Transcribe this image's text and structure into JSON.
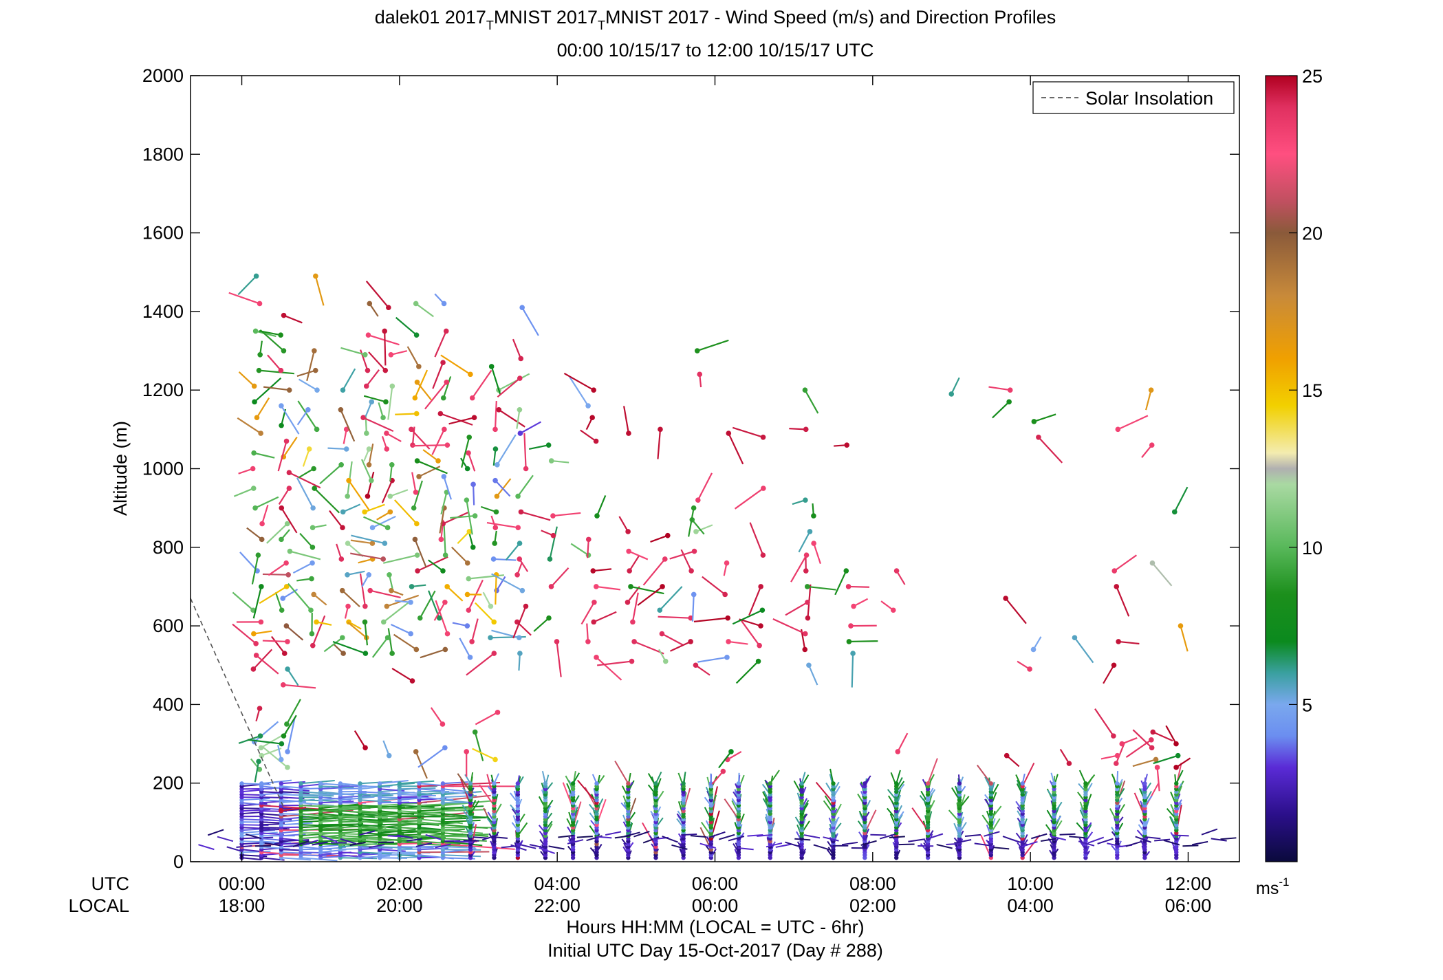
{
  "chart_data": {
    "type": "scatter",
    "title_parts": [
      "dalek01 2017",
      "T",
      "MNIST 2017",
      "T",
      "MNIST 2017 - Wind Speed (m/s) and Direction Profiles"
    ],
    "subtitle": "00:00 10/15/17 to 12:00 10/15/17  UTC",
    "ylabel": "Altitude (m)",
    "ylim": [
      0,
      2000
    ],
    "yticks": [
      "0",
      "200",
      "400",
      "600",
      "800",
      "1000",
      "1200",
      "1400",
      "1600",
      "1800",
      "2000"
    ],
    "xlim_hours": [
      -0.65,
      12.65
    ],
    "xticks_hours": [
      0,
      2,
      4,
      6,
      8,
      10,
      12
    ],
    "utc_row_label": "UTC",
    "local_row_label": "LOCAL",
    "utc_tick_labels": [
      "00:00",
      "02:00",
      "04:00",
      "06:00",
      "08:00",
      "10:00",
      "12:00"
    ],
    "local_tick_labels": [
      "18:00",
      "20:00",
      "22:00",
      "00:00",
      "02:00",
      "04:00",
      "06:00"
    ],
    "xlabel": "Hours HH:MM  (LOCAL = UTC - 6hr)",
    "xlabel2": "Initial UTC Day 15-Oct-2017 (Day # 288)",
    "legend": {
      "label": "Solar Insolation",
      "placement": "top-right"
    },
    "solar_insolation_line": [
      [
        -0.65,
        670
      ],
      [
        0.55,
        130
      ]
    ],
    "colorbar": {
      "min": 0,
      "max": 25,
      "tick_labels": [
        "5",
        "10",
        "15",
        "20",
        "25"
      ],
      "tick_values": [
        5,
        10,
        15,
        20,
        25
      ],
      "unit_base": "ms",
      "unit_exp": "-1",
      "stops": [
        [
          0,
          "#0a0a3c"
        ],
        [
          1.5,
          "#2b0f8a"
        ],
        [
          3,
          "#5a2bd6"
        ],
        [
          4,
          "#6b8ef0"
        ],
        [
          5,
          "#7aa8ee"
        ],
        [
          6,
          "#3aa0a0"
        ],
        [
          7,
          "#0b8a1e"
        ],
        [
          8.5,
          "#1c8f1c"
        ],
        [
          10,
          "#58b85a"
        ],
        [
          12,
          "#a9d9a2"
        ],
        [
          12.5,
          "#b0b0b0"
        ],
        [
          13,
          "#f3ecb0"
        ],
        [
          14.5,
          "#f2d000"
        ],
        [
          16,
          "#f0a000"
        ],
        [
          18,
          "#c88a3a"
        ],
        [
          20,
          "#8a5a3a"
        ],
        [
          21,
          "#c05060"
        ],
        [
          22.5,
          "#ff4f80"
        ],
        [
          24,
          "#e03060"
        ],
        [
          25,
          "#b00020"
        ]
      ]
    },
    "upper_profiles": [
      {
        "t": 0.2,
        "alts": [
          235,
          255,
          270,
          290,
          305,
          320,
          390,
          490,
          525,
          555,
          580,
          610,
          640,
          700,
          740,
          780,
          820,
          860,
          900,
          950,
          1000,
          1040,
          1090,
          1130,
          1170,
          1210,
          1250,
          1290,
          1350,
          1420,
          1490
        ]
      },
      {
        "t": 0.55,
        "alts": [
          130,
          240,
          260,
          280,
          300,
          320,
          350,
          450,
          490,
          530,
          560,
          600,
          640,
          670,
          700,
          730,
          760,
          790,
          820,
          860,
          900,
          950,
          990,
          1030,
          1070,
          1110,
          1160,
          1200,
          1250,
          1300,
          1340,
          1390
        ]
      },
      {
        "t": 0.9,
        "alts": [
          550,
          580,
          610,
          640,
          680,
          720,
          760,
          800,
          850,
          900,
          950,
          1000,
          1050,
          1100,
          1150,
          1200,
          1250,
          1300,
          1490
        ]
      },
      {
        "t": 1.3,
        "alts": [
          530,
          570,
          610,
          650,
          690,
          730,
          770,
          810,
          850,
          890,
          930,
          970,
          1010,
          1050,
          1100,
          1150,
          1200
        ]
      },
      {
        "t": 1.6,
        "alts": [
          290,
          530,
          570,
          610,
          650,
          690,
          730,
          770,
          810,
          850,
          890,
          930,
          970,
          1010,
          1050,
          1090,
          1130,
          1170,
          1210,
          1250,
          1290,
          1340,
          1420
        ]
      },
      {
        "t": 1.85,
        "alts": [
          270,
          530,
          570,
          610,
          650,
          690,
          730,
          770,
          810,
          850,
          890,
          930,
          970,
          1010,
          1050,
          1090,
          1130,
          1170,
          1210,
          1250,
          1290,
          1350,
          1410
        ]
      },
      {
        "t": 2.2,
        "alts": [
          280,
          460,
          540,
          580,
          620,
          660,
          700,
          740,
          780,
          820,
          860,
          900,
          940,
          980,
          1020,
          1060,
          1100,
          1140,
          1180,
          1220,
          1260,
          1340,
          1420
        ]
      },
      {
        "t": 2.55,
        "alts": [
          290,
          350,
          540,
          580,
          620,
          660,
          700,
          740,
          780,
          820,
          860,
          900,
          940,
          980,
          1020,
          1060,
          1100,
          1140,
          1180,
          1220,
          1270,
          1350,
          1420
        ]
      },
      {
        "t": 2.9,
        "alts": [
          280,
          330,
          520,
          560,
          600,
          640,
          680,
          720,
          760,
          800,
          840,
          880,
          920,
          960,
          1000,
          1040,
          1080,
          1130,
          1180,
          1240
        ]
      },
      {
        "t": 3.2,
        "alts": [
          260,
          380,
          530,
          570,
          610,
          650,
          690,
          730,
          770,
          810,
          850,
          890,
          930,
          970,
          1010,
          1050,
          1100,
          1150,
          1200,
          1260
        ]
      },
      {
        "t": 3.55,
        "alts": [
          530,
          570,
          610,
          650,
          690,
          730,
          770,
          810,
          850,
          890,
          930,
          1000,
          1090,
          1150,
          1230,
          1280,
          1410
        ]
      },
      {
        "t": 3.95,
        "alts": [
          560,
          620,
          700,
          770,
          830,
          880,
          1020,
          1060
        ]
      },
      {
        "t": 4.45,
        "alts": [
          520,
          560,
          610,
          660,
          700,
          740,
          780,
          820,
          880,
          1070,
          1130,
          1160,
          1200
        ]
      },
      {
        "t": 4.95,
        "alts": [
          510,
          560,
          610,
          660,
          700,
          740,
          790,
          840,
          1090
        ]
      },
      {
        "t": 5.35,
        "alts": [
          510,
          580,
          640,
          700,
          770,
          830,
          1100
        ]
      },
      {
        "t": 5.75,
        "alts": [
          500,
          560,
          620,
          680,
          740,
          790,
          840,
          870,
          900,
          920,
          1240,
          1300
        ]
      },
      {
        "t": 6.15,
        "alts": [
          230,
          260,
          280,
          520,
          560,
          620,
          680,
          760,
          1090
        ]
      },
      {
        "t": 6.6,
        "alts": [
          510,
          550,
          600,
          640,
          700,
          780,
          950,
          1080
        ]
      },
      {
        "t": 7.2,
        "alts": [
          500,
          540,
          580,
          620,
          660,
          700,
          740,
          780,
          810,
          840,
          880,
          920,
          1100,
          1200
        ]
      },
      {
        "t": 7.7,
        "alts": [
          530,
          560,
          600,
          650,
          700,
          740,
          1060
        ]
      },
      {
        "t": 8.3,
        "alts": [
          280,
          640,
          740
        ]
      },
      {
        "t": 9.0,
        "alts": [
          1190
        ]
      },
      {
        "t": 9.7,
        "alts": [
          270,
          670,
          1170,
          1200
        ]
      },
      {
        "t": 10.05,
        "alts": [
          490,
          540,
          1080,
          1120
        ]
      },
      {
        "t": 10.55,
        "alts": [
          250,
          570
        ]
      },
      {
        "t": 11.1,
        "alts": [
          250,
          270,
          300,
          320,
          500,
          560,
          700,
          740,
          1100
        ]
      },
      {
        "t": 11.55,
        "alts": [
          240,
          260,
          290,
          310,
          330,
          760,
          1060,
          1200
        ]
      },
      {
        "t": 11.85,
        "alts": [
          240,
          270,
          300,
          600,
          890
        ]
      }
    ],
    "lower_profiles": [
      {
        "t": 0.0
      },
      {
        "t": 0.25
      },
      {
        "t": 0.5
      },
      {
        "t": 0.75
      },
      {
        "t": 1.0
      },
      {
        "t": 1.25
      },
      {
        "t": 1.5
      },
      {
        "t": 1.75
      },
      {
        "t": 2.0
      },
      {
        "t": 2.25
      },
      {
        "t": 2.55
      },
      {
        "t": 2.9
      },
      {
        "t": 3.2
      },
      {
        "t": 3.5
      },
      {
        "t": 3.85
      },
      {
        "t": 4.2
      },
      {
        "t": 4.5
      },
      {
        "t": 4.9
      },
      {
        "t": 5.25
      },
      {
        "t": 5.6
      },
      {
        "t": 5.95
      },
      {
        "t": 6.3
      },
      {
        "t": 6.7
      },
      {
        "t": 7.1
      },
      {
        "t": 7.5
      },
      {
        "t": 7.9
      },
      {
        "t": 8.3
      },
      {
        "t": 8.7
      },
      {
        "t": 9.1
      },
      {
        "t": 9.5
      },
      {
        "t": 9.9
      },
      {
        "t": 10.3
      },
      {
        "t": 10.7
      },
      {
        "t": 11.1
      },
      {
        "t": 11.45
      },
      {
        "t": 11.85
      }
    ]
  }
}
